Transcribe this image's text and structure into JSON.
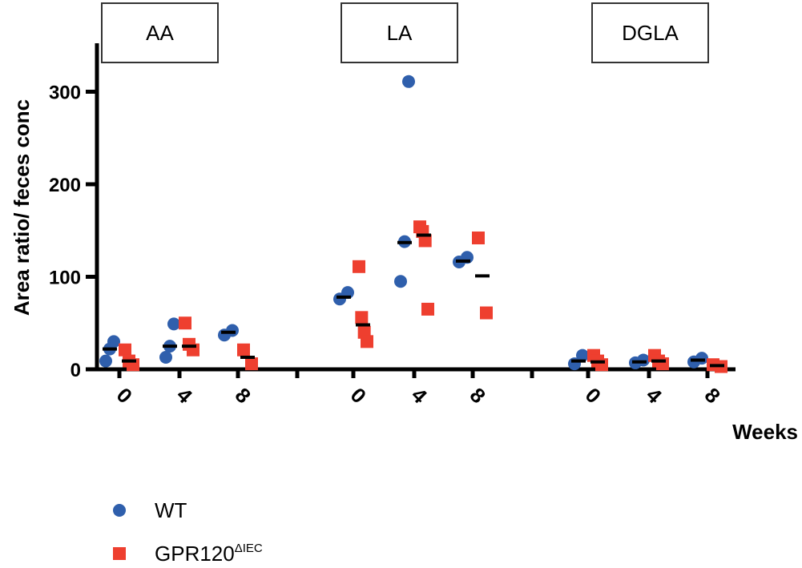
{
  "chart_data": {
    "type": "scatter",
    "title": "",
    "xlabel": "Weeks",
    "ylabel": "Area ratio/ feces conc",
    "ylim": [
      0,
      355
    ],
    "yticks": [
      "0",
      "100",
      "200",
      "300"
    ],
    "grid": false,
    "legend_position": "bottom-left",
    "panels": [
      {
        "label": "AA",
        "weeks": [
          "0",
          "4",
          "8"
        ],
        "WT": {
          "values": [
            [
              30,
              22,
              9
            ],
            [
              49,
              25,
              13
            ],
            [
              42,
              37
            ]
          ],
          "means": [
            22,
            25,
            40
          ]
        },
        "GPR120": {
          "values": [
            [
              21,
              9,
              5
            ],
            [
              50,
              27,
              21
            ],
            [
              21,
              6
            ]
          ],
          "means": [
            9,
            25,
            13
          ]
        }
      },
      {
        "label": "LA",
        "weeks": [
          "0",
          "4",
          "8"
        ],
        "WT": {
          "values": [
            [
              83,
              76
            ],
            [
              311,
              138,
              95
            ],
            [
              121,
              116
            ]
          ],
          "means": [
            78,
            137,
            117
          ]
        },
        "GPR120": {
          "values": [
            [
              111,
              56,
              40,
              30
            ],
            [
              154,
              149,
              139,
              65
            ],
            [
              142,
              61
            ]
          ],
          "means": [
            48,
            145,
            101
          ]
        }
      },
      {
        "label": "DGLA",
        "weeks": [
          "0",
          "4",
          "8"
        ],
        "WT": {
          "values": [
            [
              15,
              6
            ],
            [
              10,
              7
            ],
            [
              12,
              8
            ]
          ],
          "means": [
            9,
            8,
            10
          ]
        },
        "GPR120": {
          "values": [
            [
              15,
              9,
              5
            ],
            [
              15,
              9,
              6
            ],
            [
              5,
              3
            ]
          ],
          "means": [
            8,
            9,
            4
          ]
        }
      }
    ],
    "series": [
      {
        "key": "WT",
        "name": "WT",
        "name_sup": "",
        "color": "#2f5fac",
        "marker": "circle"
      },
      {
        "key": "GPR120",
        "name": "GPR120",
        "name_sup": "ΔIEC",
        "color": "#ee3f2f",
        "marker": "square"
      }
    ]
  }
}
